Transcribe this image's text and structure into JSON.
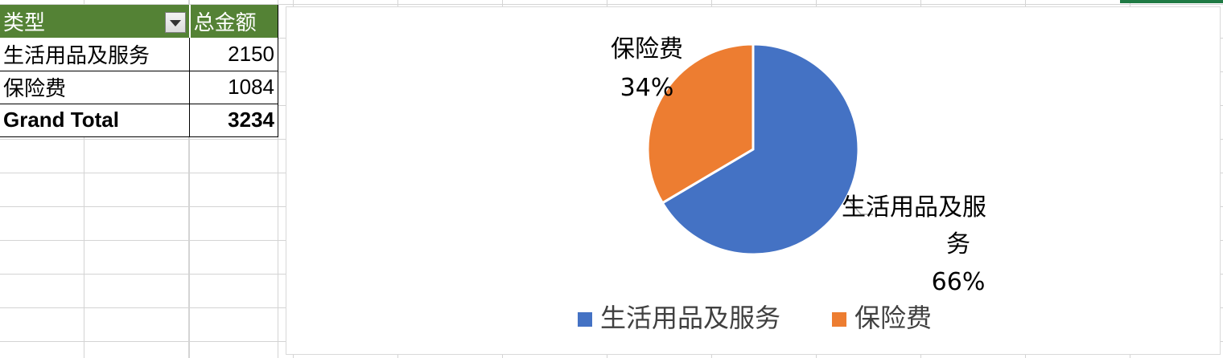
{
  "pivot_table": {
    "headers": [
      "类型",
      "总金额"
    ],
    "rows": [
      {
        "type": "生活用品及服务",
        "amount": "2150"
      },
      {
        "type": "保险费",
        "amount": "1084"
      }
    ],
    "total": {
      "label": "Grand Total",
      "amount": "3234"
    }
  },
  "chart_data": {
    "type": "pie",
    "categories": [
      "生活用品及服务",
      "保险费"
    ],
    "values": [
      2150,
      1084
    ],
    "percent_labels": [
      "66%",
      "34%"
    ],
    "colors": [
      "#4472C4",
      "#ED7D31"
    ],
    "legend": [
      "生活用品及服务",
      "保险费"
    ],
    "legend_position": "bottom",
    "data_label_lines": {
      "生活用品及服务": [
        "生活用品及服",
        "务",
        "66%"
      ],
      "保险费": [
        "保险费",
        "34%"
      ]
    }
  },
  "icons": {
    "filter_dropdown": "filter-dropdown-icon"
  }
}
